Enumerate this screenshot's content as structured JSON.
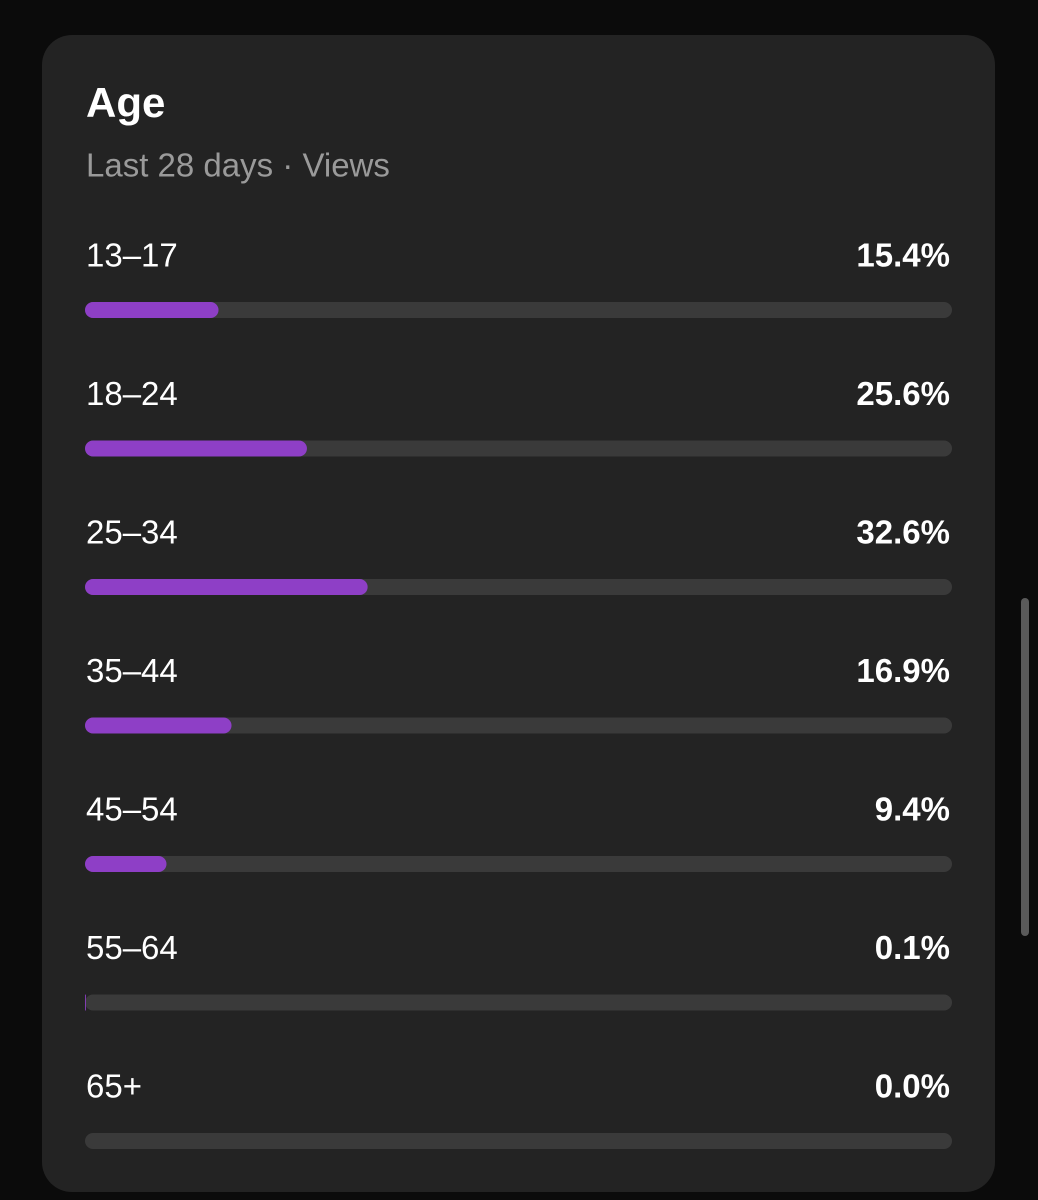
{
  "chart_data": {
    "type": "progress-bar",
    "title": "Age",
    "subtitle": "Last 28 days · Views",
    "categories": [
      "13–17",
      "18–24",
      "25–34",
      "35–44",
      "45–54",
      "55–64",
      "65+"
    ],
    "values": [
      15.4,
      25.6,
      32.6,
      16.9,
      9.4,
      0.1,
      0.0
    ],
    "value_labels": [
      "15.4%",
      "25.6%",
      "32.6%",
      "16.9%",
      "9.4%",
      "0.1%",
      "0.0%"
    ],
    "color": "#8e3fc6",
    "xlim": [
      0,
      100
    ]
  }
}
